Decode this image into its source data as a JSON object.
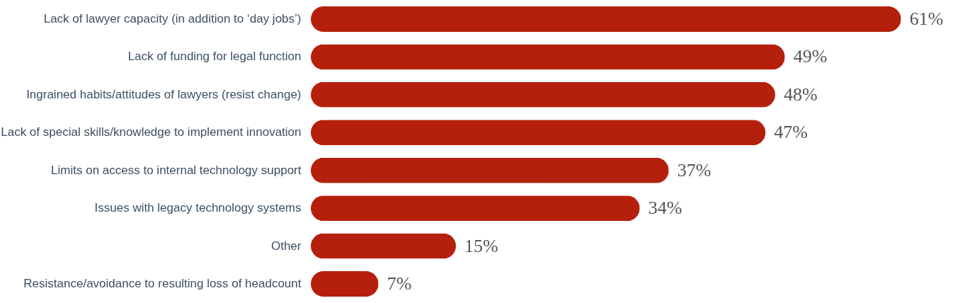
{
  "chart_data": {
    "type": "bar",
    "orientation": "horizontal",
    "categories": [
      "Lack of lawyer capacity (in addition to ‘day jobs’)",
      "Lack of funding for legal function",
      "Ingrained habits/attitudes of lawyers (resist change)",
      "Lack of special skills/knowledge to implement innovation",
      "Limits on access to internal technology support",
      "Issues with legacy technology systems",
      "Other",
      "Resistance/avoidance to resulting loss of headcount"
    ],
    "values": [
      61,
      49,
      48,
      47,
      37,
      34,
      15,
      7
    ],
    "value_labels": [
      "61%",
      "49%",
      "48%",
      "47%",
      "37%",
      "34%",
      "15%",
      "7%"
    ],
    "color": "#b5200d"
  }
}
